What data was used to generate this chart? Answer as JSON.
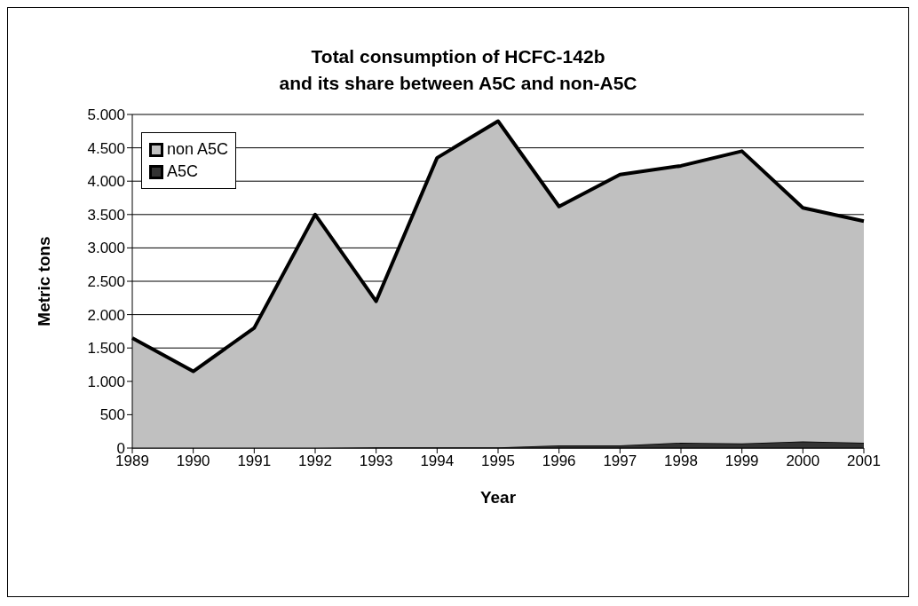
{
  "chart_data": {
    "type": "area",
    "title": "Total consumption of HCFC-142b\nand its share between A5C and non-A5C",
    "xlabel": "Year",
    "ylabel": "Metric tons",
    "categories": [
      "1989",
      "1990",
      "1991",
      "1992",
      "1993",
      "1994",
      "1995",
      "1996",
      "1997",
      "1998",
      "1999",
      "2000",
      "2001"
    ],
    "stacked": true,
    "series": [
      {
        "name": "A5C",
        "color": "#333333",
        "values": [
          0,
          0,
          0,
          0,
          10,
          10,
          10,
          40,
          40,
          80,
          70,
          100,
          80
        ]
      },
      {
        "name": "non A5C",
        "color": "#c0c0c0",
        "values": [
          1650,
          1150,
          1800,
          3500,
          2190,
          4340,
          4890,
          3580,
          4060,
          4150,
          4380,
          3500,
          3320
        ]
      }
    ],
    "ylim": [
      0,
      5000
    ],
    "yticks": [
      0,
      500,
      {
        "value": 1000,
        "label": "1.000"
      },
      {
        "value": 1500,
        "label": "1.500"
      },
      {
        "value": 2000,
        "label": "2.000"
      },
      {
        "value": 2500,
        "label": "2.500"
      },
      {
        "value": 3000,
        "label": "3.000"
      },
      {
        "value": 3500,
        "label": "3.500"
      },
      {
        "value": 4000,
        "label": "4.000"
      },
      {
        "value": 4500,
        "label": "4.500"
      },
      {
        "value": 5000,
        "label": "5.000"
      }
    ],
    "grid": "y",
    "legend": "top left"
  }
}
